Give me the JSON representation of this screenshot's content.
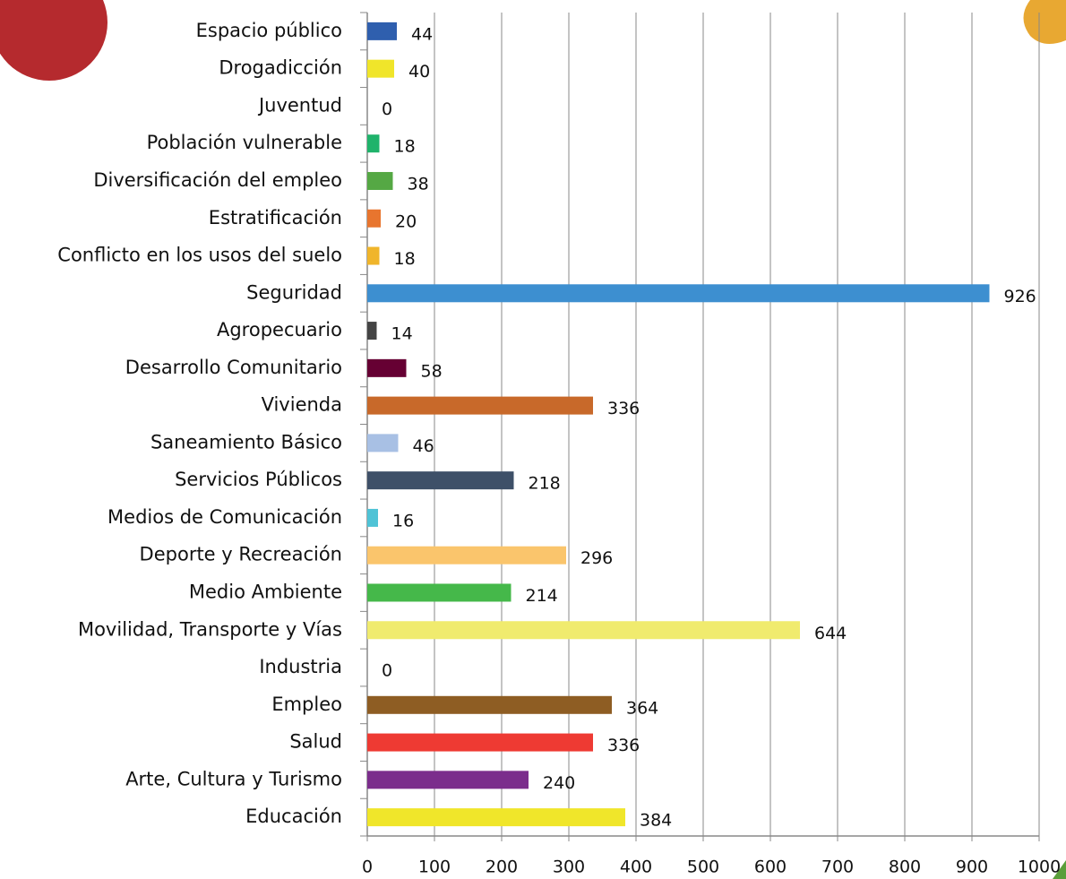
{
  "chart_data": {
    "type": "bar",
    "orientation": "horizontal",
    "categories": [
      "Espacio público",
      "Drogadicción",
      "Juventud",
      "Población vulnerable",
      "Diversificación del empleo",
      "Estratificación",
      "Conflicto en los usos del suelo",
      "Seguridad",
      "Agropecuario",
      "Desarrollo Comunitario",
      "Vivienda",
      "Saneamiento Básico",
      "Servicios Públicos",
      "Medios de Comunicación",
      "Deporte y Recreación",
      "Medio Ambiente",
      "Movilidad, Transporte y Vías",
      "Industria",
      "Empleo",
      "Salud",
      "Arte, Cultura y Turismo",
      "Educación"
    ],
    "values": [
      44,
      40,
      0,
      18,
      38,
      20,
      18,
      926,
      14,
      58,
      336,
      46,
      218,
      16,
      296,
      214,
      644,
      0,
      364,
      336,
      240,
      384
    ],
    "colors": [
      "#2f5fae",
      "#f0e52a",
      "#999999",
      "#1fb36b",
      "#55a844",
      "#e8752e",
      "#f0b52b",
      "#3d8fd0",
      "#444444",
      "#660033",
      "#c8692a",
      "#a8c0e4",
      "#3e5068",
      "#4fc3d6",
      "#fac56c",
      "#45b84a",
      "#f0eb6e",
      "#999999",
      "#8e5d23",
      "#ee3a33",
      "#7b2d8c",
      "#f0e62a"
    ],
    "xlim": [
      0,
      1000
    ],
    "xticks": [
      0,
      100,
      200,
      300,
      400,
      500,
      600,
      700,
      800,
      900,
      1000
    ],
    "grid": true
  }
}
